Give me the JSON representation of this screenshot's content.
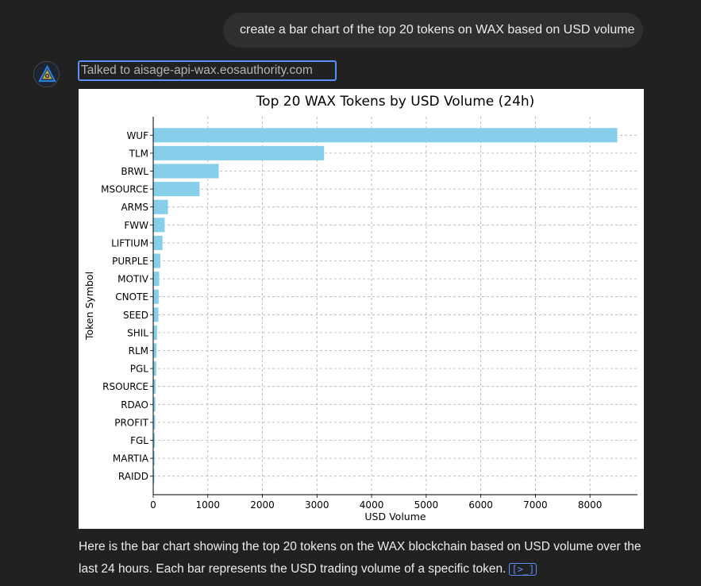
{
  "user_message": "create a bar chart of the top 20 tokens on WAX based on USD volume",
  "tool_call": "Talked to aisage-api-wax.eosauthority.com",
  "response_text": "Here is the bar chart showing the top 20 tokens on the WAX blockchain based on USD volume over the last 24 hours. Each bar represents the USD trading volume of a specific token.",
  "citation_glyph": "[>_]",
  "colors": {
    "bar": "#87ceeb",
    "background": "#212121",
    "accent": "#5b8ff9"
  },
  "icons": {
    "avatar": "assistant-logo-icon",
    "citation": "code-citation-icon"
  },
  "chart_data": {
    "type": "bar",
    "orientation": "horizontal",
    "title": "Top 20 WAX Tokens by USD Volume (24h)",
    "xlabel": "USD Volume",
    "ylabel": "Token Symbol",
    "categories": [
      "WUF",
      "TLM",
      "BRWL",
      "MSOURCE",
      "ARMS",
      "FWW",
      "LIFTIUM",
      "PURPLE",
      "MOTIV",
      "CNOTE",
      "SEED",
      "SHIL",
      "RLM",
      "PGL",
      "RSOURCE",
      "RDAO",
      "PROFIT",
      "FGL",
      "MARTIA",
      "RAIDD"
    ],
    "values": [
      8500,
      3130,
      1200,
      850,
      270,
      210,
      170,
      130,
      110,
      100,
      95,
      70,
      60,
      55,
      45,
      40,
      35,
      30,
      25,
      20
    ],
    "xticks": [
      0,
      1000,
      2000,
      3000,
      4000,
      5000,
      6000,
      7000,
      8000
    ],
    "xlim": [
      0,
      8870
    ],
    "grid": true
  }
}
